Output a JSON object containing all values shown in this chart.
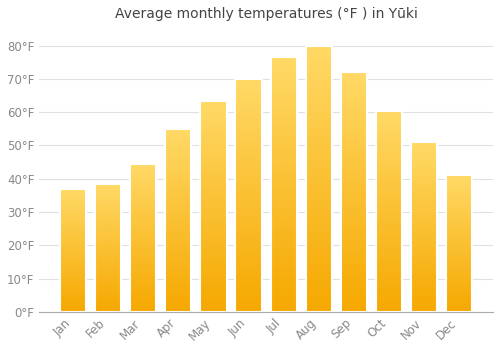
{
  "title": "Average monthly temperatures (°F ) in Yūki",
  "months": [
    "Jan",
    "Feb",
    "Mar",
    "Apr",
    "May",
    "Jun",
    "Jul",
    "Aug",
    "Sep",
    "Oct",
    "Nov",
    "Dec"
  ],
  "values": [
    37,
    38.5,
    44.5,
    55,
    63.5,
    70,
    76.5,
    80,
    72,
    60.5,
    51,
    41
  ],
  "bar_color_bottom": "#F5A800",
  "bar_color_top": "#FFD966",
  "bar_edge_color": "#E8E8E8",
  "background_color": "#FFFFFF",
  "grid_color": "#E0E0E0",
  "tick_color": "#888888",
  "title_color": "#444444",
  "ylim": [
    0,
    85
  ],
  "yticks": [
    0,
    10,
    20,
    30,
    40,
    50,
    60,
    70,
    80
  ],
  "title_fontsize": 10,
  "tick_fontsize": 8.5,
  "bar_width": 0.75
}
